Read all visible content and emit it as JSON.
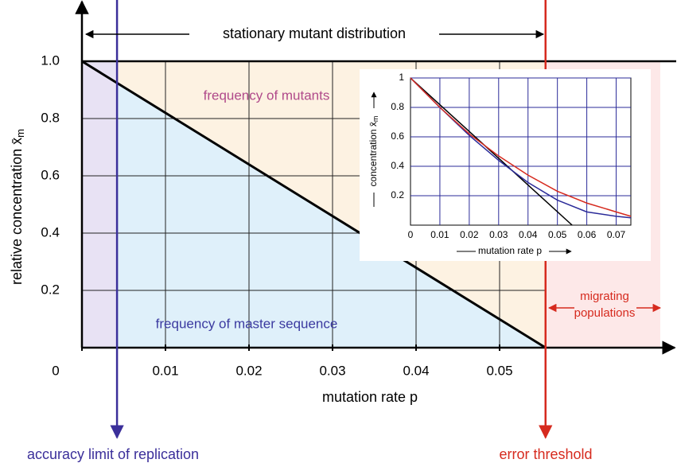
{
  "chart_data": [
    {
      "type": "line",
      "xlabel": "mutation rate p",
      "ylabel": "relative concentration x̄",
      "ylabel_subscript": "m",
      "xlim": [
        0,
        0.07
      ],
      "ylim": [
        0,
        1
      ],
      "xticks": [
        0,
        0.01,
        0.02,
        0.03,
        0.04,
        0.05
      ],
      "yticks": [
        0.2,
        0.4,
        0.6,
        0.8,
        {
          "value": 1,
          "label": "1.0"
        }
      ],
      "grid": true,
      "series": [
        {
          "x": [
            0,
            0.0555
          ],
          "values": [
            1,
            0
          ],
          "color": "#000000"
        }
      ],
      "accuracy_limit": 0.0042,
      "accuracy_color": "#3b2f9a",
      "error_threshold": 0.0555,
      "threshold_color": "#d62a1e",
      "region_colors": {
        "accuracy": "#e8e2f4",
        "master": "#dff0fa",
        "mutants": "#fdf2e2",
        "migrating": "#fde8e8"
      },
      "annotations": {
        "stationary": "stationary mutant distribution",
        "mutants": "frequency of mutants",
        "master": "frequency of master sequence",
        "migrating": [
          "migrating",
          "populations"
        ],
        "accuracy": "accuracy limit of replication",
        "threshold": "error threshold"
      }
    },
    {
      "type": "line",
      "xlabel": "mutation rate p",
      "ylabel": "concentration x̄",
      "ylabel_subscript": "m",
      "xlim": [
        0,
        0.075
      ],
      "ylim": [
        0,
        1
      ],
      "xticks": [
        0,
        0.01,
        0.02,
        0.03,
        0.04,
        0.05,
        0.06,
        0.07
      ],
      "yticks": [
        0.2,
        0.4,
        0.6,
        0.8,
        1
      ],
      "grid": true,
      "grid_color": "#2b2b99",
      "series": [
        {
          "x": [
            0,
            0.055
          ],
          "values": [
            1,
            0
          ],
          "color": "#000000"
        },
        {
          "x": [
            0,
            0.01,
            0.02,
            0.03,
            0.04,
            0.05,
            0.06,
            0.07,
            0.075
          ],
          "values": [
            1,
            0.8,
            0.61,
            0.44,
            0.29,
            0.17,
            0.09,
            0.06,
            0.05
          ],
          "color": "#2b2b99"
        },
        {
          "x": [
            0,
            0.01,
            0.02,
            0.03,
            0.04,
            0.05,
            0.06,
            0.07,
            0.075
          ],
          "values": [
            1,
            0.8,
            0.62,
            0.47,
            0.34,
            0.23,
            0.15,
            0.09,
            0.06
          ],
          "color": "#d62a1e"
        }
      ]
    }
  ]
}
